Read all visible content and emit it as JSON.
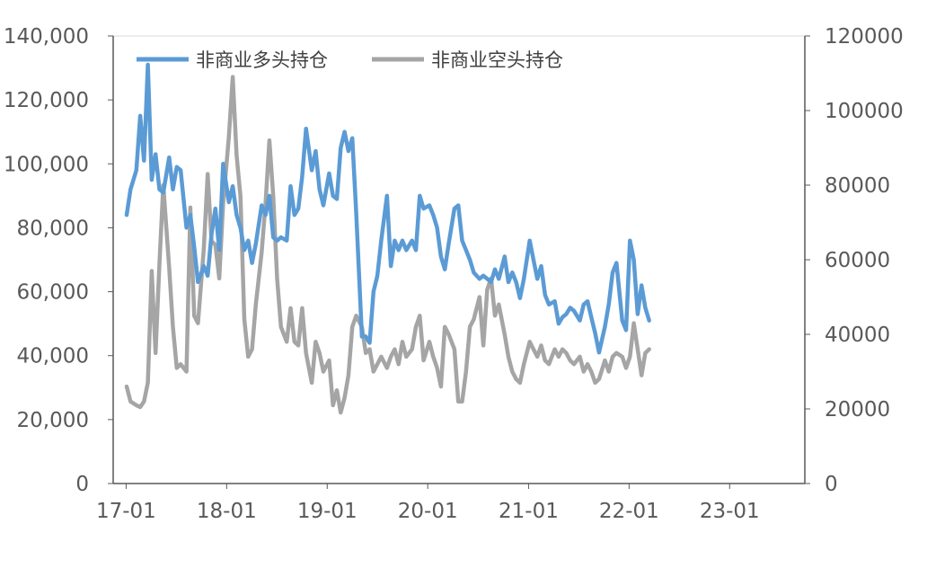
{
  "chart_data": {
    "type": "line",
    "title": "",
    "xlabel": "",
    "ylabel": "",
    "x_tick_labels": [
      "17-01",
      "18-01",
      "19-01",
      "20-01",
      "21-01",
      "22-01",
      "23-01"
    ],
    "y_left": {
      "ylim": [
        0,
        140000
      ],
      "tick_labels": [
        "0",
        "20,000",
        "40,000",
        "60,000",
        "80,000",
        "100,000",
        "120,000",
        "140,000"
      ]
    },
    "y_right": {
      "ylim": [
        0,
        120000
      ],
      "tick_labels": [
        "0",
        "20000",
        "40000",
        "60000",
        "80000",
        "100000",
        "120000"
      ]
    },
    "grid": false,
    "legend_position": "top",
    "series": [
      {
        "name": "非商业多头持仓",
        "axis": "left",
        "color": "#5B9BD5",
        "points": [
          [
            "2017-01-03",
            84000
          ],
          [
            "2017-01-17",
            92000
          ],
          [
            "2017-02-07",
            98000
          ],
          [
            "2017-02-21",
            115000
          ],
          [
            "2017-03-07",
            101000
          ],
          [
            "2017-03-21",
            131000
          ],
          [
            "2017-04-04",
            95000
          ],
          [
            "2017-04-18",
            103000
          ],
          [
            "2017-05-02",
            92000
          ],
          [
            "2017-05-16",
            91000
          ],
          [
            "2017-06-06",
            102000
          ],
          [
            "2017-06-20",
            92000
          ],
          [
            "2017-07-04",
            99000
          ],
          [
            "2017-07-18",
            98000
          ],
          [
            "2017-08-08",
            80000
          ],
          [
            "2017-08-22",
            84000
          ],
          [
            "2017-09-05",
            74000
          ],
          [
            "2017-09-19",
            63000
          ],
          [
            "2017-10-10",
            68000
          ],
          [
            "2017-10-24",
            65000
          ],
          [
            "2017-11-07",
            78000
          ],
          [
            "2017-11-21",
            86000
          ],
          [
            "2017-12-05",
            73000
          ],
          [
            "2017-12-19",
            100000
          ],
          [
            "2018-01-09",
            88000
          ],
          [
            "2018-01-23",
            93000
          ],
          [
            "2018-02-06",
            84000
          ],
          [
            "2018-02-20",
            80000
          ],
          [
            "2018-03-06",
            73000
          ],
          [
            "2018-03-20",
            76000
          ],
          [
            "2018-04-03",
            69000
          ],
          [
            "2018-04-17",
            75000
          ],
          [
            "2018-05-08",
            87000
          ],
          [
            "2018-05-22",
            84000
          ],
          [
            "2018-06-05",
            90000
          ],
          [
            "2018-06-19",
            77000
          ],
          [
            "2018-07-03",
            76000
          ],
          [
            "2018-07-17",
            77000
          ],
          [
            "2018-08-07",
            76000
          ],
          [
            "2018-08-21",
            93000
          ],
          [
            "2018-09-04",
            84000
          ],
          [
            "2018-09-18",
            86000
          ],
          [
            "2018-10-02",
            96000
          ],
          [
            "2018-10-16",
            111000
          ],
          [
            "2018-11-06",
            98000
          ],
          [
            "2018-11-20",
            104000
          ],
          [
            "2018-12-04",
            92000
          ],
          [
            "2018-12-18",
            87000
          ],
          [
            "2019-01-08",
            97000
          ],
          [
            "2019-01-22",
            90000
          ],
          [
            "2019-02-05",
            89000
          ],
          [
            "2019-02-19",
            105000
          ],
          [
            "2019-03-05",
            110000
          ],
          [
            "2019-03-19",
            104000
          ],
          [
            "2019-04-02",
            108000
          ],
          [
            "2019-04-16",
            85000
          ],
          [
            "2019-05-07",
            46000
          ],
          [
            "2019-05-21",
            46000
          ],
          [
            "2019-06-04",
            44000
          ],
          [
            "2019-06-18",
            60000
          ],
          [
            "2019-07-02",
            65000
          ],
          [
            "2019-07-16",
            76000
          ],
          [
            "2019-08-06",
            90000
          ],
          [
            "2019-08-20",
            68000
          ],
          [
            "2019-09-03",
            76000
          ],
          [
            "2019-09-17",
            73000
          ],
          [
            "2019-10-01",
            76000
          ],
          [
            "2019-10-15",
            73000
          ],
          [
            "2019-11-05",
            76000
          ],
          [
            "2019-11-19",
            73000
          ],
          [
            "2019-12-03",
            90000
          ],
          [
            "2019-12-17",
            86000
          ],
          [
            "2020-01-07",
            87000
          ],
          [
            "2020-01-21",
            84000
          ],
          [
            "2020-02-04",
            80000
          ],
          [
            "2020-02-18",
            71000
          ],
          [
            "2020-03-03",
            67000
          ],
          [
            "2020-03-17",
            75000
          ],
          [
            "2020-04-07",
            86000
          ],
          [
            "2020-04-21",
            87000
          ],
          [
            "2020-05-05",
            76000
          ],
          [
            "2020-05-19",
            73000
          ],
          [
            "2020-06-02",
            70000
          ],
          [
            "2020-06-16",
            66000
          ],
          [
            "2020-07-07",
            64000
          ],
          [
            "2020-07-21",
            65000
          ],
          [
            "2020-08-04",
            64000
          ],
          [
            "2020-08-18",
            63000
          ],
          [
            "2020-09-01",
            67000
          ],
          [
            "2020-09-15",
            64000
          ],
          [
            "2020-10-06",
            71000
          ],
          [
            "2020-10-20",
            63000
          ],
          [
            "2020-11-03",
            66000
          ],
          [
            "2020-11-17",
            63000
          ],
          [
            "2020-12-01",
            58000
          ],
          [
            "2020-12-15",
            64000
          ],
          [
            "2021-01-05",
            76000
          ],
          [
            "2021-01-19",
            70000
          ],
          [
            "2021-02-02",
            64000
          ],
          [
            "2021-02-16",
            68000
          ],
          [
            "2021-03-02",
            59000
          ],
          [
            "2021-03-16",
            56000
          ],
          [
            "2021-04-06",
            57000
          ],
          [
            "2021-04-20",
            50000
          ],
          [
            "2021-05-04",
            52000
          ],
          [
            "2021-05-18",
            53000
          ],
          [
            "2021-06-01",
            55000
          ],
          [
            "2021-06-15",
            54000
          ],
          [
            "2021-07-06",
            51000
          ],
          [
            "2021-07-20",
            56000
          ],
          [
            "2021-08-03",
            57000
          ],
          [
            "2021-08-17",
            52000
          ],
          [
            "2021-08-31",
            47000
          ],
          [
            "2021-09-14",
            41000
          ],
          [
            "2021-10-05",
            49000
          ],
          [
            "2021-10-19",
            56000
          ],
          [
            "2021-11-02",
            66000
          ],
          [
            "2021-11-16",
            69000
          ],
          [
            "2021-12-07",
            51000
          ],
          [
            "2021-12-21",
            48000
          ],
          [
            "2022-01-04",
            76000
          ],
          [
            "2022-01-18",
            70000
          ],
          [
            "2022-02-01",
            53000
          ],
          [
            "2022-02-15",
            62000
          ],
          [
            "2022-03-01",
            55000
          ],
          [
            "2022-03-15",
            51000
          ]
        ]
      },
      {
        "name": "非商业空头持仓",
        "axis": "right",
        "color": "#A5A5A5",
        "points": [
          [
            "2017-01-03",
            26000
          ],
          [
            "2017-01-17",
            22000
          ],
          [
            "2017-02-07",
            21000
          ],
          [
            "2017-02-21",
            20500
          ],
          [
            "2017-03-07",
            22000
          ],
          [
            "2017-03-21",
            27000
          ],
          [
            "2017-04-04",
            57000
          ],
          [
            "2017-04-18",
            35000
          ],
          [
            "2017-05-02",
            59000
          ],
          [
            "2017-05-16",
            80000
          ],
          [
            "2017-06-06",
            58000
          ],
          [
            "2017-06-20",
            42000
          ],
          [
            "2017-07-04",
            31000
          ],
          [
            "2017-07-18",
            32000
          ],
          [
            "2017-08-08",
            30000
          ],
          [
            "2017-08-22",
            74000
          ],
          [
            "2017-09-05",
            45000
          ],
          [
            "2017-09-19",
            43000
          ],
          [
            "2017-10-10",
            63000
          ],
          [
            "2017-10-24",
            83000
          ],
          [
            "2017-11-07",
            65000
          ],
          [
            "2017-11-21",
            64000
          ],
          [
            "2017-12-05",
            55000
          ],
          [
            "2017-12-19",
            75000
          ],
          [
            "2018-01-09",
            93000
          ],
          [
            "2018-01-23",
            109000
          ],
          [
            "2018-02-06",
            88000
          ],
          [
            "2018-02-20",
            77000
          ],
          [
            "2018-03-06",
            44000
          ],
          [
            "2018-03-20",
            34000
          ],
          [
            "2018-04-03",
            36000
          ],
          [
            "2018-04-17",
            48000
          ],
          [
            "2018-05-08",
            62000
          ],
          [
            "2018-05-22",
            75000
          ],
          [
            "2018-06-05",
            92000
          ],
          [
            "2018-06-19",
            77000
          ],
          [
            "2018-07-03",
            55000
          ],
          [
            "2018-07-17",
            42000
          ],
          [
            "2018-08-07",
            38000
          ],
          [
            "2018-08-21",
            47000
          ],
          [
            "2018-09-04",
            38000
          ],
          [
            "2018-09-18",
            37000
          ],
          [
            "2018-10-02",
            47000
          ],
          [
            "2018-10-16",
            35000
          ],
          [
            "2018-11-06",
            27000
          ],
          [
            "2018-11-20",
            38000
          ],
          [
            "2018-12-04",
            35000
          ],
          [
            "2018-12-18",
            30000
          ],
          [
            "2019-01-08",
            33000
          ],
          [
            "2019-01-22",
            21000
          ],
          [
            "2019-02-05",
            25000
          ],
          [
            "2019-02-19",
            19000
          ],
          [
            "2019-03-05",
            23000
          ],
          [
            "2019-03-19",
            29000
          ],
          [
            "2019-04-02",
            42000
          ],
          [
            "2019-04-16",
            45000
          ],
          [
            "2019-05-07",
            42000
          ],
          [
            "2019-05-21",
            35000
          ],
          [
            "2019-06-04",
            36000
          ],
          [
            "2019-06-18",
            30000
          ],
          [
            "2019-07-02",
            32000
          ],
          [
            "2019-07-16",
            34000
          ],
          [
            "2019-08-06",
            31000
          ],
          [
            "2019-08-20",
            34000
          ],
          [
            "2019-09-03",
            36000
          ],
          [
            "2019-09-17",
            32000
          ],
          [
            "2019-10-01",
            38000
          ],
          [
            "2019-10-15",
            34000
          ],
          [
            "2019-11-05",
            36000
          ],
          [
            "2019-11-19",
            42000
          ],
          [
            "2019-12-03",
            45000
          ],
          [
            "2019-12-17",
            33000
          ],
          [
            "2020-01-07",
            38000
          ],
          [
            "2020-01-21",
            34000
          ],
          [
            "2020-02-04",
            31000
          ],
          [
            "2020-02-18",
            26000
          ],
          [
            "2020-03-03",
            42000
          ],
          [
            "2020-03-17",
            40000
          ],
          [
            "2020-04-07",
            36000
          ],
          [
            "2020-04-21",
            22000
          ],
          [
            "2020-05-05",
            22000
          ],
          [
            "2020-05-19",
            30000
          ],
          [
            "2020-06-02",
            42000
          ],
          [
            "2020-06-16",
            44000
          ],
          [
            "2020-07-07",
            50000
          ],
          [
            "2020-07-21",
            37000
          ],
          [
            "2020-08-04",
            52000
          ],
          [
            "2020-08-18",
            55000
          ],
          [
            "2020-09-01",
            45000
          ],
          [
            "2020-09-15",
            48000
          ],
          [
            "2020-10-06",
            40000
          ],
          [
            "2020-10-20",
            34000
          ],
          [
            "2020-11-03",
            30000
          ],
          [
            "2020-11-17",
            28000
          ],
          [
            "2020-12-01",
            27000
          ],
          [
            "2020-12-15",
            32000
          ],
          [
            "2021-01-05",
            38000
          ],
          [
            "2021-01-19",
            36000
          ],
          [
            "2021-02-02",
            34000
          ],
          [
            "2021-02-16",
            37000
          ],
          [
            "2021-03-02",
            33000
          ],
          [
            "2021-03-16",
            32000
          ],
          [
            "2021-04-06",
            36000
          ],
          [
            "2021-04-20",
            34000
          ],
          [
            "2021-05-04",
            36000
          ],
          [
            "2021-05-18",
            35000
          ],
          [
            "2021-06-01",
            33000
          ],
          [
            "2021-06-15",
            32000
          ],
          [
            "2021-07-06",
            34000
          ],
          [
            "2021-07-20",
            30000
          ],
          [
            "2021-08-03",
            32000
          ],
          [
            "2021-08-17",
            30000
          ],
          [
            "2021-08-31",
            27000
          ],
          [
            "2021-09-14",
            28000
          ],
          [
            "2021-10-05",
            33000
          ],
          [
            "2021-10-19",
            30000
          ],
          [
            "2021-11-02",
            34000
          ],
          [
            "2021-11-16",
            35000
          ],
          [
            "2021-12-07",
            34000
          ],
          [
            "2021-12-21",
            31000
          ],
          [
            "2022-01-04",
            34000
          ],
          [
            "2022-01-18",
            43000
          ],
          [
            "2022-02-01",
            36000
          ],
          [
            "2022-02-15",
            29000
          ],
          [
            "2022-03-01",
            35000
          ],
          [
            "2022-03-15",
            36000
          ]
        ]
      }
    ]
  }
}
